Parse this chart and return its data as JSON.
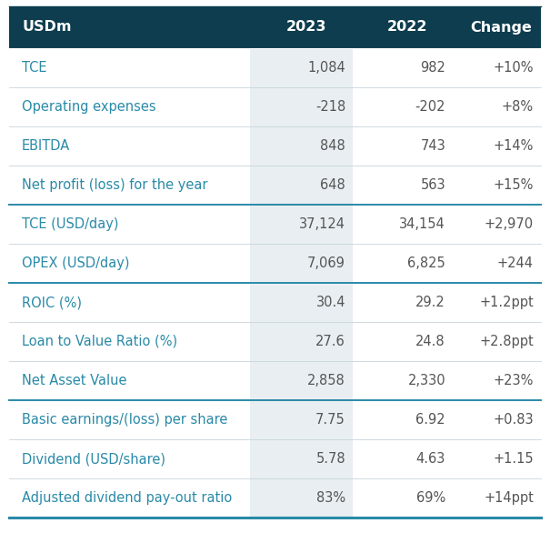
{
  "header": [
    "USDm",
    "2023",
    "2022",
    "Change"
  ],
  "rows": [
    [
      "TCE",
      "1,084",
      "982",
      "+10%"
    ],
    [
      "Operating expenses",
      "-218",
      "-202",
      "+8%"
    ],
    [
      "EBITDA",
      "848",
      "743",
      "+14%"
    ],
    [
      "Net profit (loss) for the year",
      "648",
      "563",
      "+15%"
    ],
    [
      "TCE (USD/day)",
      "37,124",
      "34,154",
      "+2,970"
    ],
    [
      "OPEX (USD/day)",
      "7,069",
      "6,825",
      "+244"
    ],
    [
      "ROIC (%)",
      "30.4",
      "29.2",
      "+1.2ppt"
    ],
    [
      "Loan to Value Ratio (%)",
      "27.6",
      "24.8",
      "+2.8ppt"
    ],
    [
      "Net Asset Value",
      "2,858",
      "2,330",
      "+23%"
    ],
    [
      "Basic earnings/(loss) per share",
      "7.75",
      "6.92",
      "+0.83"
    ],
    [
      "Dividend (USD/share)",
      "5.78",
      "4.63",
      "+1.15"
    ],
    [
      "Adjusted dividend pay-out ratio",
      "83%",
      "69%",
      "+14ppt"
    ]
  ],
  "thick_dividers_after": [
    3,
    5,
    8
  ],
  "header_bg": "#0d3d4e",
  "header_text_color": "#ffffff",
  "row_text_color": "#2a8aa8",
  "value_text_color": "#555555",
  "col2_bg": "#e8eef2",
  "divider_color_light": "#c8d5db",
  "divider_color_thick": "#2a8aa8",
  "bottom_border_color": "#2a8aa8",
  "font_size": 10.5,
  "header_font_size": 11.5
}
